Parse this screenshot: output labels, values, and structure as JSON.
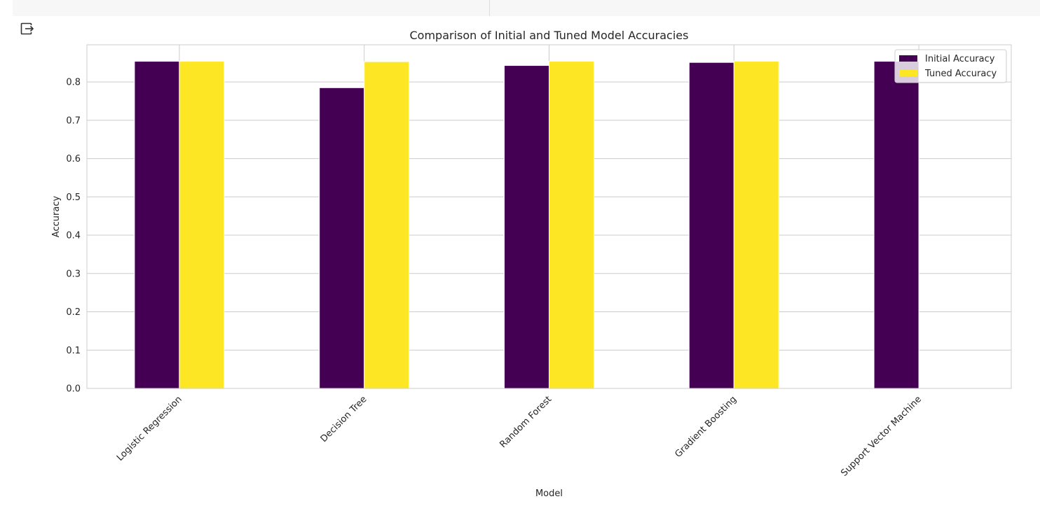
{
  "output_icon": "output-expand-icon",
  "chart_data": {
    "type": "bar",
    "title": "Comparison of Initial and Tuned Model Accuracies",
    "xlabel": "Model",
    "ylabel": "Accuracy",
    "categories": [
      "Logistic Regression",
      "Decision Tree",
      "Random Forest",
      "Gradient Boosting",
      "Support Vector Machine"
    ],
    "series": [
      {
        "name": "Initial Accuracy",
        "color": "#440154",
        "values": [
          0.854,
          0.785,
          0.843,
          0.851,
          0.854
        ]
      },
      {
        "name": "Tuned Accuracy",
        "color": "#fde725",
        "values": [
          0.854,
          0.853,
          0.854,
          0.854,
          null
        ]
      }
    ],
    "yticks": [
      "0.0",
      "0.1",
      "0.2",
      "0.3",
      "0.4",
      "0.5",
      "0.6",
      "0.7",
      "0.8"
    ],
    "ylim": [
      0,
      0.897
    ],
    "grid": true,
    "legend_position": "upper right"
  }
}
